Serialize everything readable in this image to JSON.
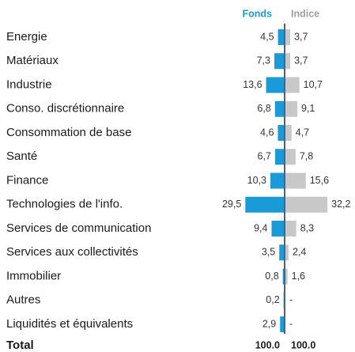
{
  "chart_data": {
    "type": "bar",
    "orientation": "horizontal",
    "categories": [
      "Energie",
      "Matériaux",
      "Industrie",
      "Conso. discrétionnaire",
      "Consommation de base",
      "Santé",
      "Finance",
      "Technologies de l'info.",
      "Services de communication",
      "Services aux collectivités",
      "Immobilier",
      "Autres",
      "Liquidités et équivalents"
    ],
    "series": [
      {
        "name": "Fonds",
        "color": "#1b9ad8",
        "side": "left",
        "values": [
          4.5,
          7.3,
          13.6,
          6.8,
          4.6,
          6.7,
          10.3,
          29.5,
          9.4,
          3.5,
          0.8,
          0.2,
          2.9
        ],
        "value_labels": [
          "4,5",
          "7,3",
          "13,6",
          "6,8",
          "4,6",
          "6,7",
          "10,3",
          "29,5",
          "9,4",
          "3,5",
          "0,8",
          "0,2",
          "2,9"
        ]
      },
      {
        "name": "Indice",
        "color": "#c8c8c8",
        "side": "right",
        "values": [
          3.7,
          3.7,
          10.7,
          9.1,
          4.7,
          7.8,
          15.6,
          32.2,
          8.3,
          2.4,
          1.6,
          null,
          null
        ],
        "value_labels": [
          "3,7",
          "3,7",
          "10,7",
          "9,1",
          "4,7",
          "7,8",
          "15,6",
          "32,2",
          "8,3",
          "2,4",
          "1,6",
          "-",
          "-"
        ]
      }
    ],
    "total_label": "Total",
    "total_values": [
      100,
      100
    ],
    "total_value_labels": [
      "100.0",
      "100.0"
    ]
  }
}
